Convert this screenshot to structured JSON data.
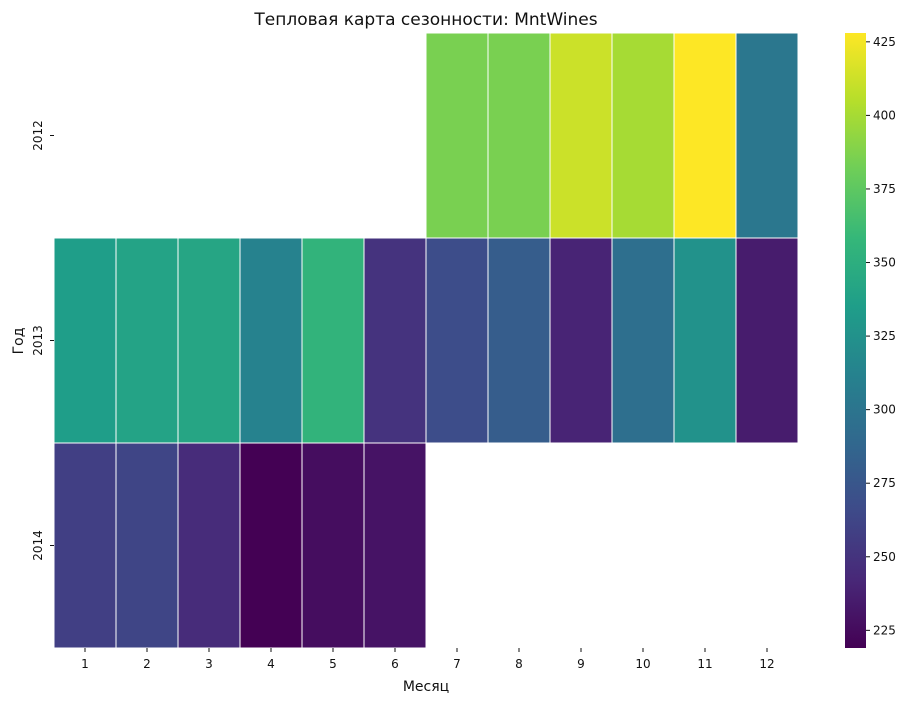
{
  "chart_data": {
    "type": "heatmap",
    "title": "Тепловая карта сезонности: MntWines",
    "xlabel": "Месяц",
    "ylabel": "Год",
    "x_categories": [
      "1",
      "2",
      "3",
      "4",
      "5",
      "6",
      "7",
      "8",
      "9",
      "10",
      "11",
      "12"
    ],
    "y_categories": [
      "2012",
      "2013",
      "2014"
    ],
    "values": [
      [
        null,
        null,
        null,
        null,
        null,
        null,
        385,
        385,
        412,
        400,
        428,
        302
      ],
      [
        335,
        340,
        342,
        312,
        355,
        250,
        268,
        280,
        240,
        295,
        325,
        235
      ],
      [
        258,
        262,
        245,
        219,
        226,
        230,
        null,
        null,
        null,
        null,
        null,
        null
      ]
    ],
    "colorscale": "viridis",
    "color_range": [
      219,
      428
    ],
    "colorbar_ticks": [
      225,
      250,
      275,
      300,
      325,
      350,
      375,
      400,
      425
    ]
  }
}
